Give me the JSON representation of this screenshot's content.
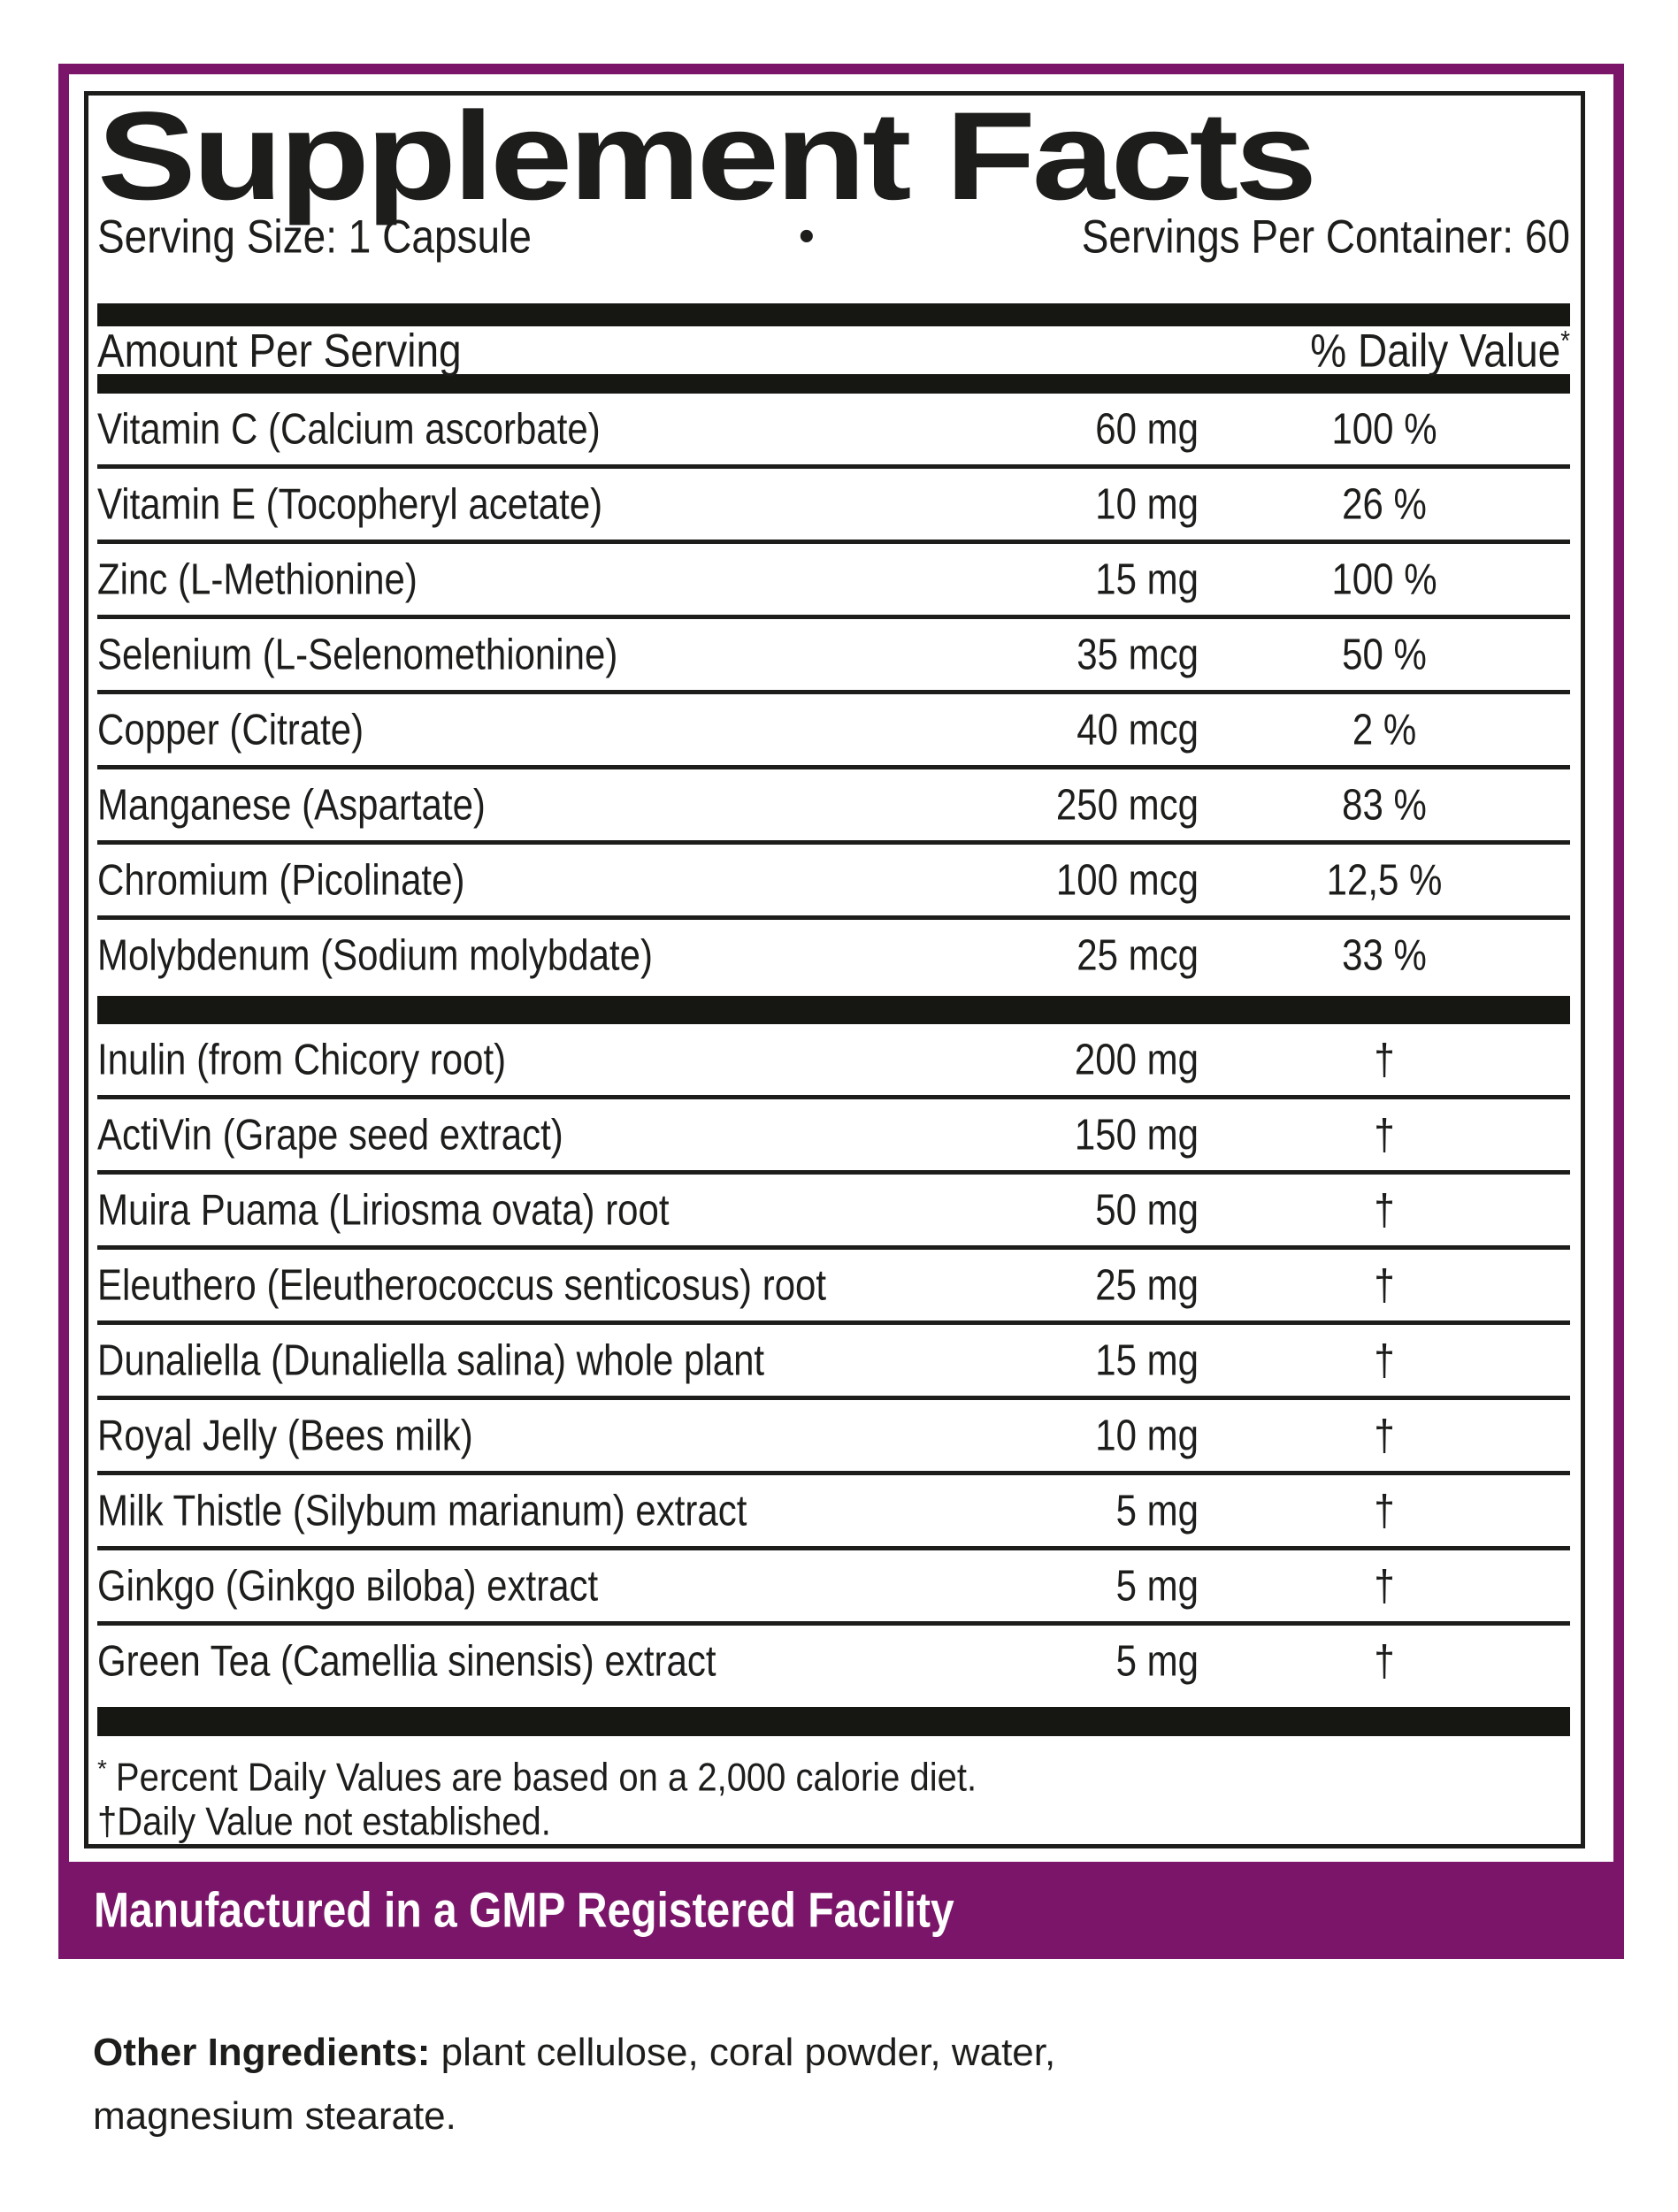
{
  "colors": {
    "accent_purple": "#7b1569",
    "text_black": "#1d1d1b"
  },
  "panel": {
    "title": "Supplement Facts",
    "serving_size": "Serving Size: 1 Capsule",
    "bullet": "•",
    "servings_per_container": "Servings Per Container: 60",
    "column_header_left": "Amount Per Serving",
    "column_header_right": "% Daily Value",
    "column_header_right_symbol": "*"
  },
  "rows_group1": [
    {
      "name": "Vitamin C (Calcium ascorbate)",
      "amount": "60 mg",
      "dv": "100 %"
    },
    {
      "name": "Vitamin E (Tocopheryl acetate)",
      "amount": "10 mg",
      "dv": "26 %"
    },
    {
      "name": "Zinc (L-Methionine)",
      "amount": "15 mg",
      "dv": "100 %"
    },
    {
      "name": "Selenium (L-Selenomethionine)",
      "amount": "35 mcg",
      "dv": "50 %"
    },
    {
      "name": "Copper (Citrate)",
      "amount": "40 mcg",
      "dv": "2 %"
    },
    {
      "name": "Manganese (Aspartate)",
      "amount": "250 mcg",
      "dv": "83 %"
    },
    {
      "name": "Chromium (Picolinate)",
      "amount": "100 mcg",
      "dv": "12,5 %"
    },
    {
      "name": "Molybdenum (Sodium molybdate)",
      "amount": "25 mcg",
      "dv": "33 %"
    }
  ],
  "rows_group2": [
    {
      "name": "Inulin (from Chicory root)",
      "amount": "200 mg",
      "dv": "†"
    },
    {
      "name": "ActiVin (Grape seed extract)",
      "amount": "150 mg",
      "dv": "†"
    },
    {
      "name": "Muira Puama (Liriosma ovata) root",
      "amount": "50 mg",
      "dv": "†"
    },
    {
      "name": "Eleuthero (Eleutherococcus senticosus) root",
      "amount": "25 mg",
      "dv": "†"
    },
    {
      "name": "Dunaliella (Dunaliella salina) whole plant",
      "amount": "15 mg",
      "dv": "†"
    },
    {
      "name": "Royal Jelly (Bees milk)",
      "amount": "10 mg",
      "dv": "†"
    },
    {
      "name": "Milk Thistle (Silybum marianum) extract",
      "amount": "5 mg",
      "dv": "†"
    },
    {
      "name": "Ginkgo (Ginkgo вiloba) extract",
      "amount": "5 mg",
      "dv": "†"
    },
    {
      "name": "Green Tea (Camellia sinensis) extract",
      "amount": "5 mg",
      "dv": "†"
    }
  ],
  "footnotes": {
    "asterisk_symbol": "*",
    "asterisk_text": "Percent Daily Values are based on a 2,000 calorie diet.",
    "dagger_text": "†Daily Value not established."
  },
  "banner": {
    "text": "Manufactured in a GMP Registered Facility"
  },
  "other_ingredients": {
    "label": "Other Ingredients:",
    "text": " plant cellulose, coral powder, water, magnesium stearate."
  }
}
